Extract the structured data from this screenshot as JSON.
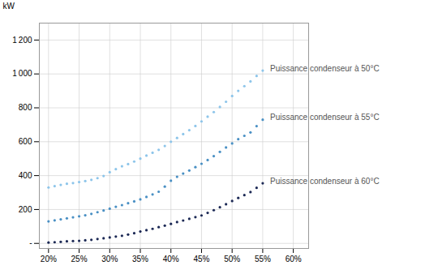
{
  "chart_data": {
    "type": "scatter",
    "x": [
      0.2,
      0.21,
      0.22,
      0.23,
      0.24,
      0.25,
      0.26,
      0.27,
      0.28,
      0.29,
      0.3,
      0.31,
      0.32,
      0.33,
      0.34,
      0.35,
      0.36,
      0.37,
      0.38,
      0.39,
      0.4,
      0.41,
      0.42,
      0.43,
      0.44,
      0.45,
      0.46,
      0.47,
      0.48,
      0.49,
      0.5,
      0.51,
      0.52,
      0.53,
      0.54,
      0.55
    ],
    "series": [
      {
        "name": "Puissance condenseur à 50°C",
        "color": "#8dc5ea",
        "marker": "dot",
        "values": [
          330,
          338,
          345,
          352,
          356,
          362,
          368,
          375,
          385,
          398,
          420,
          438,
          455,
          468,
          483,
          500,
          518,
          535,
          552,
          575,
          600,
          622,
          645,
          668,
          693,
          720,
          748,
          775,
          805,
          836,
          870,
          900,
          928,
          956,
          988,
          1020
        ]
      },
      {
        "name": "Puissance condenseur à 55°C",
        "color": "#4a90c4",
        "marker": "dot",
        "values": [
          130,
          136,
          142,
          148,
          154,
          160,
          166,
          174,
          184,
          194,
          205,
          216,
          226,
          237,
          248,
          260,
          274,
          289,
          305,
          335,
          370,
          393,
          412,
          430,
          450,
          470,
          492,
          515,
          540,
          566,
          590,
          615,
          635,
          655,
          692,
          730
        ]
      },
      {
        "name": "Puissance condenseur à 60°C",
        "color": "#1c2955",
        "marker": "dot",
        "values": [
          5,
          7,
          9,
          12,
          14,
          15,
          18,
          21,
          26,
          30,
          35,
          40,
          45,
          52,
          60,
          70,
          78,
          86,
          96,
          105,
          115,
          126,
          135,
          145,
          155,
          165,
          180,
          196,
          213,
          231,
          250,
          268,
          285,
          303,
          328,
          355
        ]
      }
    ],
    "annotations": [
      {
        "text": "Puissance condenseur à 50°C",
        "x": 0.562,
        "y": 1030
      },
      {
        "text": "Puissance condenseur à 55°C",
        "x": 0.562,
        "y": 742
      },
      {
        "text": "Puissance condenseur à 60°C",
        "x": 0.562,
        "y": 368
      }
    ],
    "ylabel": "kW",
    "xlim": [
      0.185,
      0.625
    ],
    "ylim": [
      -30,
      1300
    ],
    "xticks": [
      {
        "value": 0.2,
        "label": "20%"
      },
      {
        "value": 0.25,
        "label": "25%"
      },
      {
        "value": 0.3,
        "label": "30%"
      },
      {
        "value": 0.35,
        "label": "35%"
      },
      {
        "value": 0.4,
        "label": "40%"
      },
      {
        "value": 0.45,
        "label": "45%"
      },
      {
        "value": 0.5,
        "label": "50%"
      },
      {
        "value": 0.55,
        "label": "55%"
      },
      {
        "value": 0.6,
        "label": "60%"
      }
    ],
    "yticks": [
      {
        "value": 0,
        "label": "-"
      },
      200,
      400,
      600,
      800,
      {
        "value": 1000,
        "label": "1 000"
      },
      {
        "value": 1200,
        "label": "1 200"
      }
    ],
    "grid": true
  }
}
